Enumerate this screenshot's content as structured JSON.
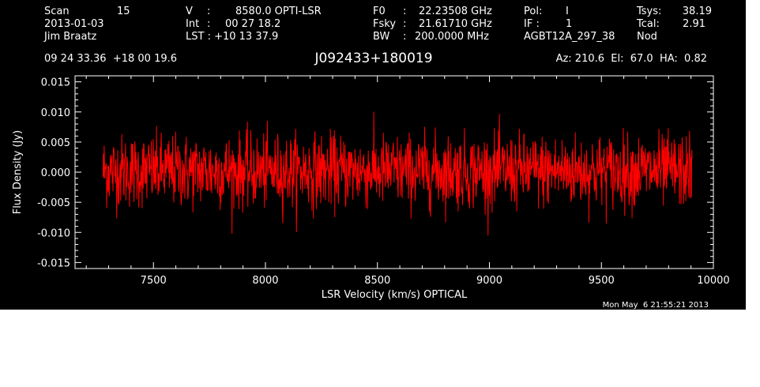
{
  "header": {
    "col1": [
      "Scan",
      "15",
      "2013-01-03",
      "Jim Braatz"
    ],
    "col2": [
      "V",
      ":",
      "8580.0 OPTI-LSR",
      "Int",
      ":",
      "00 27 18.2",
      "LST : +10 13 37.9"
    ],
    "col3": [
      "F0",
      ":",
      "22.23508 GHz",
      "Fsky",
      ":",
      "21.61710 GHz",
      "BW",
      ":",
      "200.0000 MHz"
    ],
    "col4": [
      "Pol:",
      "I",
      "IF :",
      "1",
      "AGBT12A_297_38"
    ],
    "col5": [
      "Tsys:",
      "38.19",
      "Tcal:",
      "2.91",
      "Nod"
    ],
    "coords": "09 24 33.36  +18 00 19.6",
    "object": "J092433+180019",
    "pointing": "Az: 210.6  El:  67.0  HA:  0.82",
    "date": "Mon May  6 21:55:21 2013"
  },
  "colors": {
    "background": "#000000",
    "axes": "#ffffff",
    "series": "#ff0000"
  },
  "chart_data": {
    "type": "line",
    "xlabel": "LSR Velocity (km/s) OPTICAL",
    "ylabel": "Flux Density (Jy)",
    "xlim": [
      7150,
      10000
    ],
    "ylim": [
      -0.016,
      0.016
    ],
    "x_ticks": [
      "7500",
      "8000",
      "8500",
      "9000",
      "9500",
      "10000"
    ],
    "y_ticks": [
      "-0.015",
      "-0.010",
      "-0.005",
      "0.000",
      "0.005",
      "0.010",
      "0.015"
    ],
    "grid": false,
    "series": [
      {
        "color": "#ff0000",
        "x_range": [
          7275,
          9905
        ],
        "points": 1600,
        "mean": 0.0002,
        "std_dev": 0.003,
        "min": -0.0105,
        "max": 0.0115
      }
    ]
  }
}
